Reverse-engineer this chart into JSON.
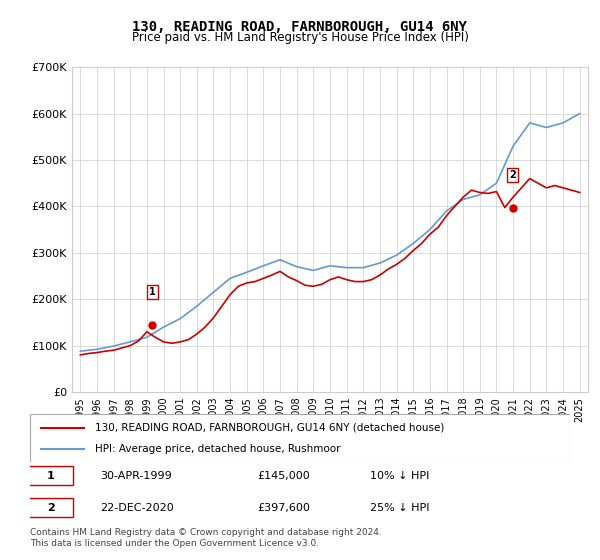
{
  "title": "130, READING ROAD, FARNBOROUGH, GU14 6NY",
  "subtitle": "Price paid vs. HM Land Registry's House Price Index (HPI)",
  "legend_label_red": "130, READING ROAD, FARNBOROUGH, GU14 6NY (detached house)",
  "legend_label_blue": "HPI: Average price, detached house, Rushmoor",
  "footnote": "Contains HM Land Registry data © Crown copyright and database right 2024.\nThis data is licensed under the Open Government Licence v3.0.",
  "marker1_label": "1",
  "marker1_date": "30-APR-1999",
  "marker1_price": "£145,000",
  "marker1_hpi": "10% ↓ HPI",
  "marker2_label": "2",
  "marker2_date": "22-DEC-2020",
  "marker2_price": "£397,600",
  "marker2_hpi": "25% ↓ HPI",
  "red_color": "#cc0000",
  "blue_color": "#6699cc",
  "grid_color": "#cccccc",
  "bg_color": "#ffffff",
  "ylim": [
    0,
    700000
  ],
  "yticks": [
    0,
    100000,
    200000,
    300000,
    400000,
    500000,
    600000,
    700000
  ],
  "ytick_labels": [
    "£0",
    "£100K",
    "£200K",
    "£300K",
    "£400K",
    "£500K",
    "£600K",
    "£700K"
  ],
  "hpi_years": [
    1995,
    1996,
    1997,
    1998,
    1999,
    2000,
    2001,
    2002,
    2003,
    2004,
    2005,
    2006,
    2007,
    2008,
    2009,
    2010,
    2011,
    2012,
    2013,
    2014,
    2015,
    2016,
    2017,
    2018,
    2019,
    2020,
    2021,
    2022,
    2023,
    2024,
    2025
  ],
  "hpi_values": [
    88000,
    92000,
    99000,
    108000,
    118000,
    140000,
    158000,
    185000,
    215000,
    245000,
    258000,
    272000,
    285000,
    270000,
    262000,
    272000,
    268000,
    268000,
    278000,
    295000,
    320000,
    350000,
    390000,
    415000,
    425000,
    450000,
    530000,
    580000,
    570000,
    580000,
    600000
  ],
  "price_years": [
    1995.0,
    1995.5,
    1996.0,
    1996.5,
    1997.0,
    1997.5,
    1998.0,
    1998.5,
    1999.0,
    1999.5,
    2000.0,
    2000.5,
    2001.0,
    2001.5,
    2002.0,
    2002.5,
    2003.0,
    2003.5,
    2004.0,
    2004.5,
    2005.0,
    2005.5,
    2006.0,
    2006.5,
    2007.0,
    2007.5,
    2008.0,
    2008.5,
    2009.0,
    2009.5,
    2010.0,
    2010.5,
    2011.0,
    2011.5,
    2012.0,
    2012.5,
    2013.0,
    2013.5,
    2014.0,
    2014.5,
    2015.0,
    2015.5,
    2016.0,
    2016.5,
    2017.0,
    2017.5,
    2018.0,
    2018.5,
    2019.0,
    2019.5,
    2020.0,
    2020.5,
    2021.0,
    2021.5,
    2022.0,
    2022.5,
    2023.0,
    2023.5,
    2024.0,
    2024.5,
    2025.0
  ],
  "price_values": [
    80000,
    83000,
    85000,
    88000,
    90000,
    95000,
    100000,
    110000,
    130000,
    118000,
    108000,
    105000,
    108000,
    113000,
    125000,
    140000,
    160000,
    185000,
    210000,
    228000,
    235000,
    238000,
    245000,
    252000,
    260000,
    248000,
    240000,
    230000,
    228000,
    232000,
    242000,
    248000,
    242000,
    238000,
    238000,
    242000,
    252000,
    265000,
    275000,
    288000,
    305000,
    320000,
    340000,
    355000,
    380000,
    400000,
    420000,
    435000,
    430000,
    428000,
    432000,
    397600,
    420000,
    440000,
    460000,
    450000,
    440000,
    445000,
    440000,
    435000,
    430000
  ],
  "marker1_x": 1999.33,
  "marker1_y": 145000,
  "marker2_x": 2020.97,
  "marker2_y": 397600,
  "xtick_years": [
    1995,
    1996,
    1997,
    1998,
    1999,
    2000,
    2001,
    2002,
    2003,
    2004,
    2005,
    2006,
    2007,
    2008,
    2009,
    2010,
    2011,
    2012,
    2013,
    2014,
    2015,
    2016,
    2017,
    2018,
    2019,
    2020,
    2021,
    2022,
    2023,
    2024,
    2025
  ]
}
